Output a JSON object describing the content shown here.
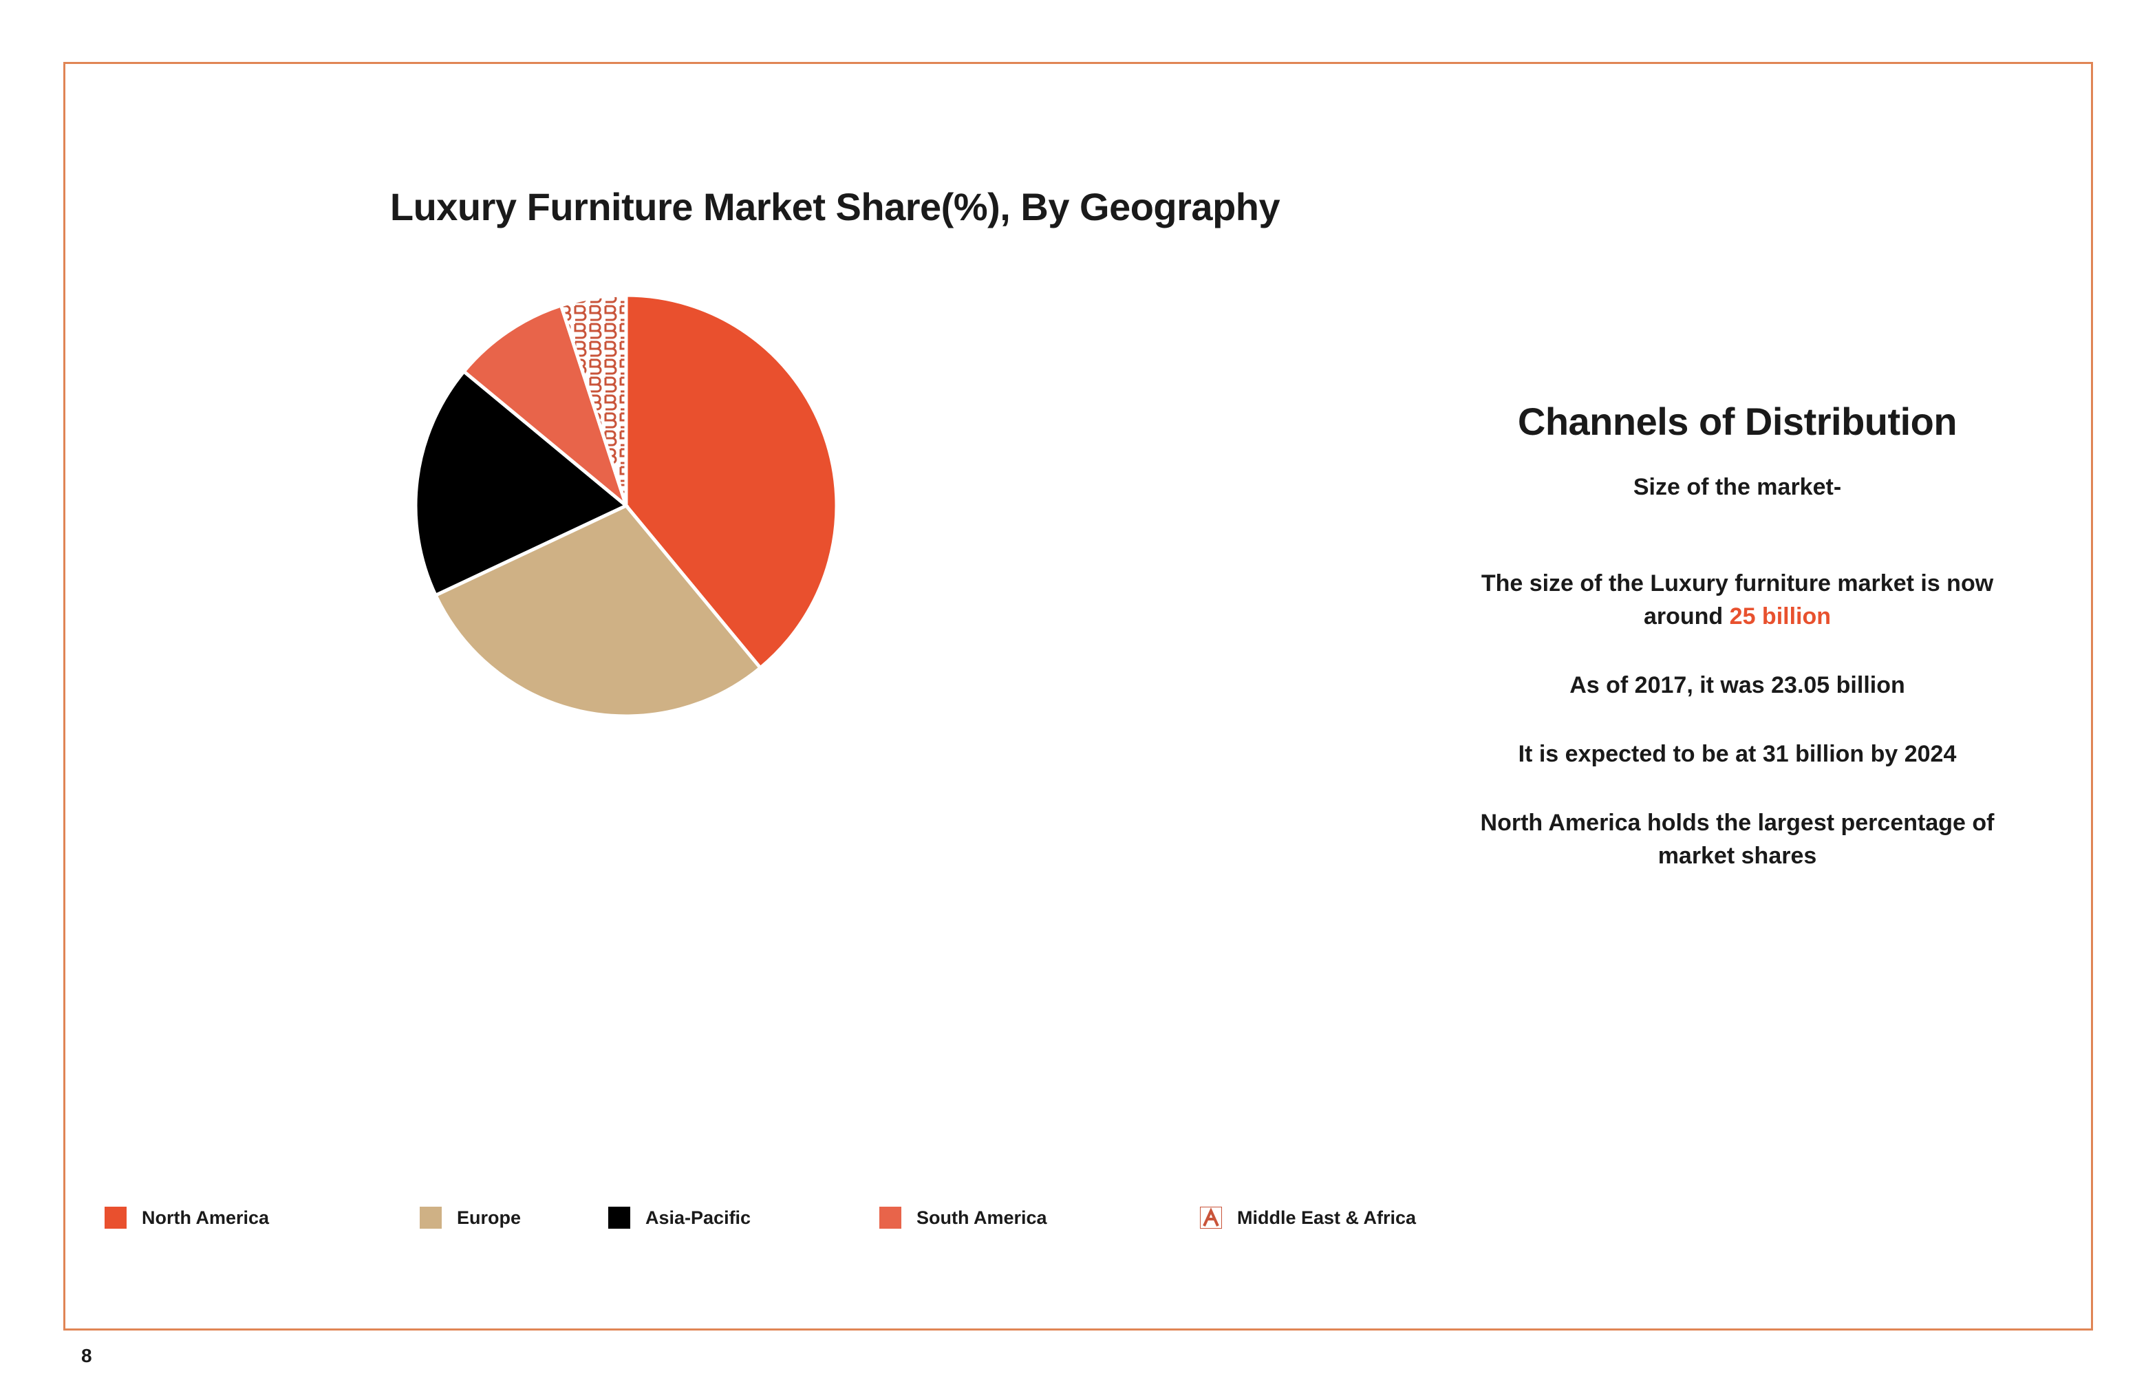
{
  "page": {
    "number": "8"
  },
  "colors": {
    "frame": "#e08555",
    "accent": "#e8512e",
    "north_america": "#e9502e",
    "europe": "#cfb185",
    "asia_pacific": "#000000",
    "south_america": "#e8644a",
    "mea_pattern_bg": "#ffffff",
    "mea_pattern_fg": "#c9543a"
  },
  "chart_data": {
    "type": "pie",
    "title": "Luxury Furniture Market Share(%), By Geography",
    "categories": [
      "North America",
      "Europe",
      "Asia-Pacific",
      "South America",
      "Middle East & Africa"
    ],
    "values": [
      39,
      29,
      18,
      9,
      5
    ],
    "start": "12 o'clock, clockwise",
    "legend_position": "bottom"
  },
  "legend": {
    "items": [
      {
        "label": "North America",
        "color": "#e9502e"
      },
      {
        "label": "Europe",
        "color": "#cfb185"
      },
      {
        "label": "Asia-Pacific",
        "color": "#000000"
      },
      {
        "label": "South America",
        "color": "#e8644a"
      },
      {
        "label": "Middle East & Africa",
        "color": "pattern"
      }
    ]
  },
  "side_panel": {
    "heading": "Channels of Distribution",
    "subheading": "Size of the market-",
    "line1_prefix": "The size of the Luxury furniture market is now around ",
    "line1_highlight": "25 billion",
    "line2": "As of 2017, it was 23.05 billion",
    "line3": "It is expected to be at 31 billion by 2024",
    "line4": "North America holds the largest percentage of market shares"
  }
}
